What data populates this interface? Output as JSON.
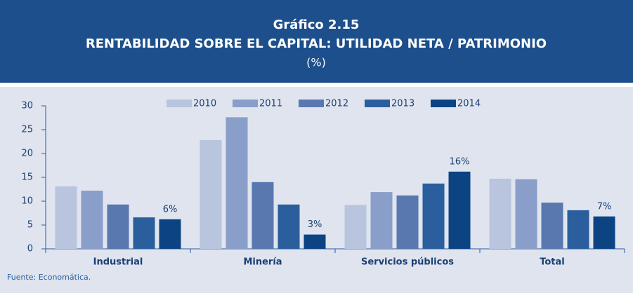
{
  "chart_data": {
    "type": "bar",
    "title": "Gráfico 2.15",
    "subtitle": "RENTABILIDAD SOBRE EL CAPITAL: UTILIDAD NETA / PATRIMONIO",
    "unit_label": "(%)",
    "source": "Fuente: Economática.",
    "categories": [
      "Industrial",
      "Minería",
      "Servicios públicos",
      "Total"
    ],
    "series": [
      {
        "name": "2010",
        "color": "#b9c4de",
        "values": [
          13.1,
          22.8,
          9.2,
          14.7
        ]
      },
      {
        "name": "2011",
        "color": "#899ec9",
        "values": [
          12.2,
          27.6,
          11.9,
          14.6
        ]
      },
      {
        "name": "2012",
        "color": "#5878af",
        "values": [
          9.3,
          14.0,
          11.2,
          9.7
        ]
      },
      {
        "name": "2013",
        "color": "#2a5e9d",
        "values": [
          6.6,
          9.3,
          13.7,
          8.1
        ]
      },
      {
        "name": "2014",
        "color": "#0c4483",
        "values": [
          6.2,
          3.0,
          16.2,
          6.8
        ],
        "value_labels": [
          "6%",
          "3%",
          "16%",
          "7%"
        ]
      }
    ],
    "ylim": [
      0,
      30
    ],
    "yticks": [
      0,
      5,
      10,
      15,
      20,
      25,
      30
    ],
    "legend": "top"
  }
}
